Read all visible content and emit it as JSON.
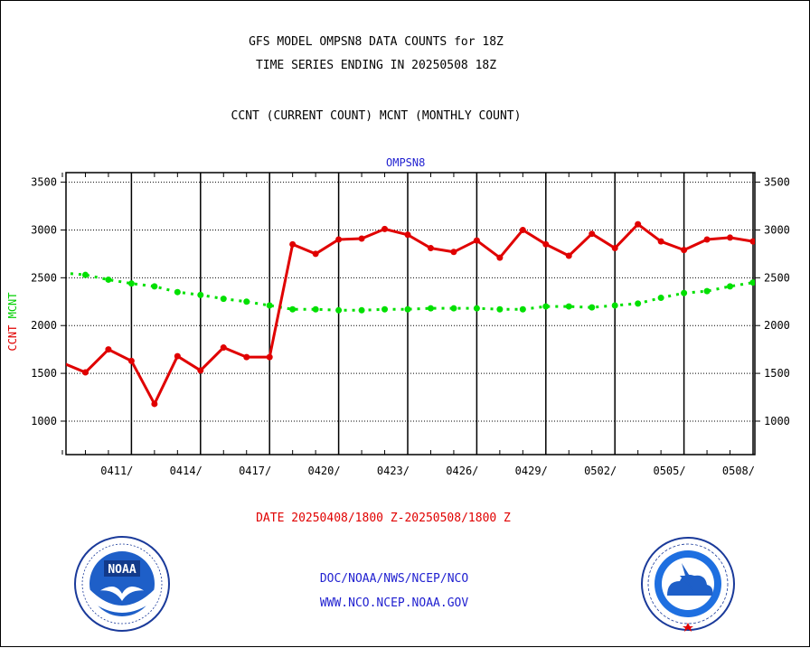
{
  "header": {
    "title_line1": "GFS MODEL OMPSN8 DATA COUNTS for 18Z",
    "title_line2": "TIME SERIES ENDING IN 20250508 18Z",
    "title_line3": "CCNT (CURRENT COUNT) MCNT (MONTHLY COUNT)"
  },
  "ylabel": {
    "ccnt": "CCNT",
    "mcnt": "MCNT"
  },
  "footer": {
    "date_range": "DATE 20250408/1800 Z-20250508/1800 Z",
    "credit_line1": "DOC/NOAA/NWS/NCEP/NCO",
    "credit_line2": "WWW.NCO.NCEP.NOAA.GOV"
  },
  "logos": {
    "left": "noaa-seal",
    "right": "national-weather-service-seal"
  },
  "colors": {
    "ccnt": "#e00000",
    "mcnt": "#00e000",
    "station": "#1f1fd0",
    "date_range": "#e00000",
    "credits": "#1f1fd0"
  },
  "chart_data": {
    "type": "line",
    "title": "OMPSN8",
    "x_start": "20250408/1800 Z",
    "x_end": "20250508/1800 Z",
    "x": [
      0,
      1,
      2,
      3,
      4,
      5,
      6,
      7,
      8,
      9,
      10,
      11,
      12,
      13,
      14,
      15,
      16,
      17,
      18,
      19,
      20,
      21,
      22,
      23,
      24,
      25,
      26,
      27,
      28,
      29,
      30
    ],
    "xtick_labels": [
      "0411/",
      "0414/",
      "0417/",
      "0420/",
      "0423/",
      "0426/",
      "0429/",
      "0502/",
      "0505/",
      "0508/"
    ],
    "xtick_positions": [
      3,
      6,
      9,
      12,
      15,
      18,
      21,
      24,
      27,
      30
    ],
    "ylim": [
      650,
      3600
    ],
    "yticks": [
      1000,
      1500,
      2000,
      2500,
      3000,
      3500
    ],
    "grid": true,
    "series": [
      {
        "name": "CCNT",
        "values": [
          1610,
          1510,
          1750,
          1630,
          1180,
          1680,
          1530,
          1770,
          1670,
          1670,
          2850,
          2750,
          2900,
          2910,
          3010,
          2950,
          2810,
          2770,
          2890,
          2710,
          3000,
          2850,
          2730,
          2960,
          2810,
          3060,
          2880,
          2790,
          2900,
          2920,
          2880
        ]
      },
      {
        "name": "MCNT",
        "values": [
          2550,
          2530,
          2480,
          2440,
          2410,
          2350,
          2320,
          2280,
          2250,
          2210,
          2170,
          2170,
          2160,
          2160,
          2170,
          2170,
          2180,
          2180,
          2180,
          2170,
          2170,
          2200,
          2200,
          2190,
          2210,
          2230,
          2290,
          2340,
          2360,
          2410,
          2450
        ]
      }
    ]
  }
}
